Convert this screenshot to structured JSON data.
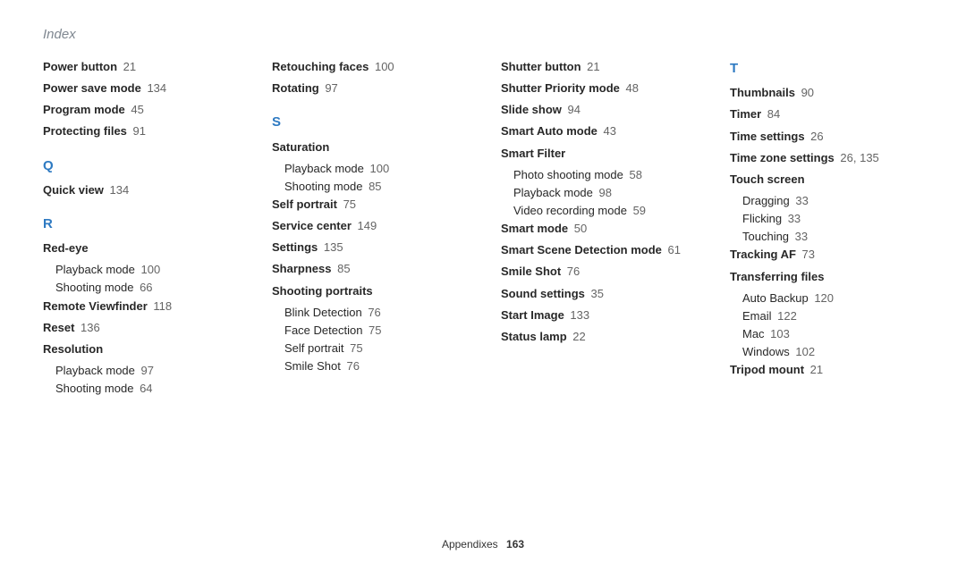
{
  "pageTitle": "Index",
  "footer": {
    "label": "Appendixes",
    "page": "163"
  },
  "columns": [
    [
      {
        "type": "entry",
        "bold": "Power button",
        "pg": "21"
      },
      {
        "type": "entry",
        "bold": "Power save mode",
        "pg": "134"
      },
      {
        "type": "entry",
        "bold": "Program mode",
        "pg": "45"
      },
      {
        "type": "entry",
        "bold": "Protecting files",
        "pg": "91"
      },
      {
        "type": "letter",
        "text": "Q"
      },
      {
        "type": "entry",
        "bold": "Quick view",
        "pg": "134"
      },
      {
        "type": "letter",
        "text": "R"
      },
      {
        "type": "entry",
        "bold": "Red-eye"
      },
      {
        "type": "sub",
        "text": "Playback mode",
        "pg": "100"
      },
      {
        "type": "sub",
        "text": "Shooting mode",
        "pg": "66"
      },
      {
        "type": "entry",
        "bold": "Remote Viewfinder",
        "pg": "118"
      },
      {
        "type": "entry",
        "bold": "Reset",
        "pg": "136"
      },
      {
        "type": "entry",
        "bold": "Resolution"
      },
      {
        "type": "sub",
        "text": "Playback mode",
        "pg": "97"
      },
      {
        "type": "sub",
        "text": "Shooting mode",
        "pg": "64"
      }
    ],
    [
      {
        "type": "entry",
        "bold": "Retouching faces",
        "pg": "100"
      },
      {
        "type": "entry",
        "bold": "Rotating",
        "pg": "97"
      },
      {
        "type": "letter",
        "text": "S"
      },
      {
        "type": "entry",
        "bold": "Saturation"
      },
      {
        "type": "sub",
        "text": "Playback mode",
        "pg": "100"
      },
      {
        "type": "sub",
        "text": "Shooting mode",
        "pg": "85"
      },
      {
        "type": "entry",
        "bold": "Self portrait",
        "pg": "75"
      },
      {
        "type": "entry",
        "bold": "Service center",
        "pg": "149"
      },
      {
        "type": "entry",
        "bold": "Settings",
        "pg": "135"
      },
      {
        "type": "entry",
        "bold": "Sharpness",
        "pg": "85"
      },
      {
        "type": "entry",
        "bold": "Shooting portraits"
      },
      {
        "type": "sub",
        "text": "Blink Detection",
        "pg": "76"
      },
      {
        "type": "sub",
        "text": "Face Detection",
        "pg": "75"
      },
      {
        "type": "sub",
        "text": "Self portrait",
        "pg": "75"
      },
      {
        "type": "sub",
        "text": "Smile Shot",
        "pg": "76"
      }
    ],
    [
      {
        "type": "entry",
        "bold": "Shutter button",
        "pg": "21"
      },
      {
        "type": "entry",
        "bold": "Shutter Priority mode",
        "pg": "48"
      },
      {
        "type": "entry",
        "bold": "Slide show",
        "pg": "94"
      },
      {
        "type": "entry",
        "bold": "Smart Auto mode",
        "pg": "43"
      },
      {
        "type": "entry",
        "bold": "Smart Filter"
      },
      {
        "type": "sub",
        "text": "Photo shooting mode",
        "pg": "58"
      },
      {
        "type": "sub",
        "text": "Playback mode",
        "pg": "98"
      },
      {
        "type": "sub",
        "text": "Video recording mode",
        "pg": "59"
      },
      {
        "type": "entry",
        "bold": "Smart mode",
        "pg": "50"
      },
      {
        "type": "entry",
        "bold": "Smart Scene Detection mode",
        "pg": "61"
      },
      {
        "type": "entry",
        "bold": "Smile Shot",
        "pg": "76"
      },
      {
        "type": "entry",
        "bold": "Sound settings",
        "pg": "35"
      },
      {
        "type": "entry",
        "bold": "Start Image",
        "pg": "133"
      },
      {
        "type": "entry",
        "bold": "Status lamp",
        "pg": "22"
      }
    ],
    [
      {
        "type": "letter",
        "text": "T",
        "first": true
      },
      {
        "type": "entry",
        "bold": "Thumbnails",
        "pg": "90"
      },
      {
        "type": "entry",
        "bold": "Timer",
        "pg": "84"
      },
      {
        "type": "entry",
        "bold": "Time settings",
        "pg": "26"
      },
      {
        "type": "entry",
        "bold": "Time zone settings",
        "pg": "26, 135"
      },
      {
        "type": "entry",
        "bold": "Touch screen"
      },
      {
        "type": "sub",
        "text": "Dragging",
        "pg": "33"
      },
      {
        "type": "sub",
        "text": "Flicking",
        "pg": "33"
      },
      {
        "type": "sub",
        "text": "Touching",
        "pg": "33"
      },
      {
        "type": "entry",
        "bold": "Tracking AF",
        "pg": "73"
      },
      {
        "type": "entry",
        "bold": "Transferring files"
      },
      {
        "type": "sub",
        "text": "Auto Backup",
        "pg": "120"
      },
      {
        "type": "sub",
        "text": "Email",
        "pg": "122"
      },
      {
        "type": "sub",
        "text": "Mac",
        "pg": "103"
      },
      {
        "type": "sub",
        "text": "Windows",
        "pg": "102"
      },
      {
        "type": "entry",
        "bold": "Tripod mount",
        "pg": "21"
      }
    ]
  ]
}
